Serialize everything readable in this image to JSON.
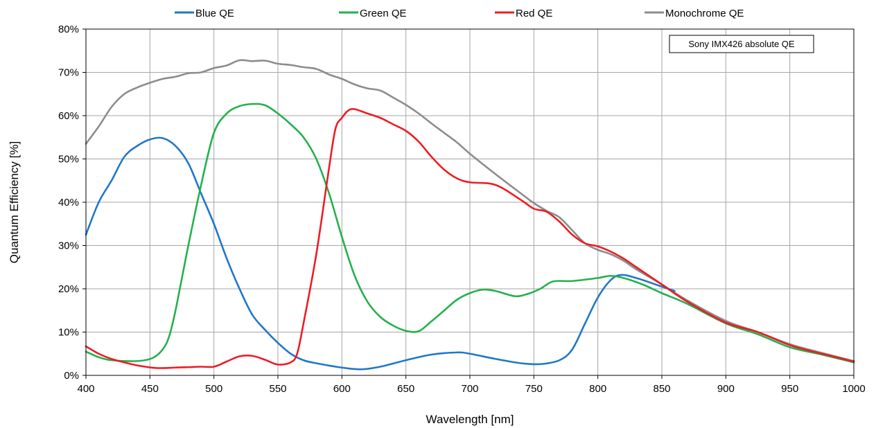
{
  "chart_data": {
    "type": "line",
    "xlabel": "Wavelength [nm]",
    "ylabel": "Quantum Efficiency [%]",
    "xlim": [
      400,
      1000
    ],
    "ylim": [
      0,
      80
    ],
    "x_ticks": [
      "400",
      "450",
      "500",
      "550",
      "600",
      "650",
      "700",
      "750",
      "800",
      "850",
      "900",
      "950",
      "1000"
    ],
    "y_ticks": [
      "0%",
      "10%",
      "20%",
      "30%",
      "40%",
      "50%",
      "60%",
      "70%",
      "80%"
    ],
    "grid": true,
    "legend_position": "top",
    "annotation": "Sony IMX426 absolute QE",
    "series": [
      {
        "name": "Blue QE",
        "color": "#1f77c9",
        "points": [
          [
            400,
            32.5
          ],
          [
            410,
            40
          ],
          [
            420,
            45
          ],
          [
            430,
            50.5
          ],
          [
            440,
            53
          ],
          [
            450,
            54.5
          ],
          [
            460,
            54.8
          ],
          [
            470,
            53
          ],
          [
            480,
            49
          ],
          [
            490,
            42
          ],
          [
            500,
            35
          ],
          [
            510,
            27
          ],
          [
            520,
            20
          ],
          [
            530,
            14
          ],
          [
            540,
            10.5
          ],
          [
            550,
            7.5
          ],
          [
            560,
            5
          ],
          [
            570,
            3.5
          ],
          [
            580,
            2.8
          ],
          [
            600,
            1.8
          ],
          [
            615,
            1.4
          ],
          [
            630,
            2
          ],
          [
            650,
            3.5
          ],
          [
            670,
            4.8
          ],
          [
            690,
            5.3
          ],
          [
            700,
            5
          ],
          [
            720,
            3.8
          ],
          [
            740,
            2.8
          ],
          [
            755,
            2.6
          ],
          [
            770,
            3.5
          ],
          [
            780,
            6
          ],
          [
            790,
            12
          ],
          [
            800,
            18
          ],
          [
            810,
            22
          ],
          [
            818,
            23.2
          ],
          [
            830,
            22.5
          ],
          [
            850,
            20.5
          ],
          [
            860,
            19.5
          ]
        ]
      },
      {
        "name": "Green QE",
        "color": "#22b14c",
        "points": [
          [
            400,
            5.5
          ],
          [
            410,
            4.2
          ],
          [
            420,
            3.5
          ],
          [
            440,
            3.3
          ],
          [
            452,
            4
          ],
          [
            460,
            6
          ],
          [
            465,
            9
          ],
          [
            470,
            15
          ],
          [
            480,
            30
          ],
          [
            490,
            44
          ],
          [
            500,
            56
          ],
          [
            510,
            60.5
          ],
          [
            520,
            62.2
          ],
          [
            530,
            62.7
          ],
          [
            540,
            62.4
          ],
          [
            550,
            60.5
          ],
          [
            560,
            58
          ],
          [
            570,
            55
          ],
          [
            580,
            50
          ],
          [
            590,
            42
          ],
          [
            600,
            32
          ],
          [
            610,
            23
          ],
          [
            620,
            17
          ],
          [
            630,
            13.5
          ],
          [
            640,
            11.5
          ],
          [
            650,
            10.3
          ],
          [
            660,
            10.2
          ],
          [
            670,
            12.5
          ],
          [
            680,
            15
          ],
          [
            690,
            17.5
          ],
          [
            700,
            19
          ],
          [
            710,
            19.8
          ],
          [
            720,
            19.5
          ],
          [
            735,
            18.3
          ],
          [
            745,
            18.8
          ],
          [
            755,
            20
          ],
          [
            765,
            21.7
          ],
          [
            780,
            21.8
          ],
          [
            800,
            22.5
          ],
          [
            810,
            23
          ],
          [
            820,
            22.5
          ],
          [
            835,
            21
          ],
          [
            850,
            19
          ],
          [
            870,
            16.5
          ],
          [
            900,
            12
          ],
          [
            925,
            9.5
          ],
          [
            950,
            6.5
          ],
          [
            975,
            4.8
          ],
          [
            1000,
            3
          ]
        ]
      },
      {
        "name": "Red QE",
        "color": "#ed1c24",
        "points": [
          [
            400,
            6.7
          ],
          [
            410,
            5
          ],
          [
            420,
            3.8
          ],
          [
            430,
            3
          ],
          [
            440,
            2.3
          ],
          [
            455,
            1.7
          ],
          [
            470,
            1.8
          ],
          [
            480,
            1.9
          ],
          [
            490,
            2
          ],
          [
            500,
            2
          ],
          [
            510,
            3.2
          ],
          [
            520,
            4.4
          ],
          [
            530,
            4.5
          ],
          [
            540,
            3.6
          ],
          [
            550,
            2.5
          ],
          [
            560,
            3
          ],
          [
            565,
            5
          ],
          [
            570,
            12
          ],
          [
            580,
            28
          ],
          [
            590,
            48
          ],
          [
            595,
            57
          ],
          [
            600,
            59.5
          ],
          [
            605,
            61.2
          ],
          [
            610,
            61.5
          ],
          [
            620,
            60.5
          ],
          [
            630,
            59.5
          ],
          [
            640,
            58
          ],
          [
            650,
            56.5
          ],
          [
            660,
            54
          ],
          [
            670,
            50.5
          ],
          [
            680,
            47.5
          ],
          [
            690,
            45.5
          ],
          [
            700,
            44.6
          ],
          [
            720,
            44
          ],
          [
            740,
            40.5
          ],
          [
            750,
            38.5
          ],
          [
            760,
            37.8
          ],
          [
            770,
            35.5
          ],
          [
            780,
            32.5
          ],
          [
            790,
            30.5
          ],
          [
            800,
            29.8
          ],
          [
            810,
            28.6
          ],
          [
            820,
            27
          ],
          [
            830,
            25
          ],
          [
            850,
            21
          ],
          [
            870,
            17
          ],
          [
            900,
            12.2
          ],
          [
            925,
            10
          ],
          [
            950,
            7
          ],
          [
            975,
            5
          ],
          [
            1000,
            3.2
          ]
        ]
      },
      {
        "name": "Monochrome QE",
        "color": "#8c8c8c",
        "points": [
          [
            400,
            53.5
          ],
          [
            410,
            57.5
          ],
          [
            420,
            62
          ],
          [
            430,
            65
          ],
          [
            440,
            66.5
          ],
          [
            450,
            67.6
          ],
          [
            460,
            68.5
          ],
          [
            470,
            69
          ],
          [
            480,
            69.8
          ],
          [
            490,
            70
          ],
          [
            500,
            71
          ],
          [
            510,
            71.6
          ],
          [
            520,
            72.8
          ],
          [
            530,
            72.6
          ],
          [
            540,
            72.7
          ],
          [
            550,
            72
          ],
          [
            560,
            71.7
          ],
          [
            570,
            71.2
          ],
          [
            580,
            70.8
          ],
          [
            590,
            69.5
          ],
          [
            600,
            68.5
          ],
          [
            610,
            67.2
          ],
          [
            620,
            66.3
          ],
          [
            630,
            65.8
          ],
          [
            640,
            64.2
          ],
          [
            650,
            62.5
          ],
          [
            660,
            60.5
          ],
          [
            670,
            58.2
          ],
          [
            680,
            56
          ],
          [
            690,
            53.8
          ],
          [
            700,
            51.2
          ],
          [
            720,
            46.5
          ],
          [
            740,
            42
          ],
          [
            750,
            39.8
          ],
          [
            760,
            38
          ],
          [
            770,
            36.5
          ],
          [
            780,
            33.5
          ],
          [
            790,
            30.5
          ],
          [
            800,
            29
          ],
          [
            810,
            28
          ],
          [
            820,
            26.5
          ],
          [
            830,
            24.5
          ],
          [
            850,
            21
          ],
          [
            870,
            17.3
          ],
          [
            900,
            12.6
          ],
          [
            925,
            10
          ],
          [
            950,
            7.2
          ],
          [
            975,
            5.2
          ],
          [
            1000,
            3.3
          ]
        ]
      }
    ]
  }
}
